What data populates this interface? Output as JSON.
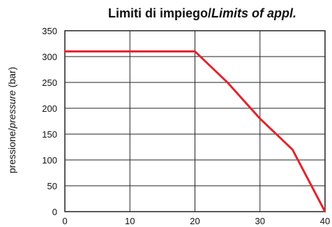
{
  "chart_data": {
    "type": "line",
    "title_part_1": "Limiti di impiego/",
    "title_part_2": "Limits of appl.",
    "xlabel": "",
    "ylabel_part_1": "pressione/",
    "ylabel_part_2": "pressure",
    "ylabel_part_3": " (bar)",
    "xlim": [
      0,
      40
    ],
    "ylim": [
      0,
      350
    ],
    "x_ticks": [
      0,
      10,
      20,
      30,
      40
    ],
    "y_ticks": [
      0,
      50,
      100,
      150,
      200,
      250,
      300,
      350
    ],
    "grid": true,
    "series": [
      {
        "x": [
          0,
          20,
          25,
          30,
          35,
          40
        ],
        "y": [
          310,
          310,
          250,
          180,
          120,
          0
        ],
        "color": "#e3232b"
      }
    ]
  },
  "colors": {
    "line": "#e3232b",
    "grid": "#222222",
    "text": "#111111"
  }
}
